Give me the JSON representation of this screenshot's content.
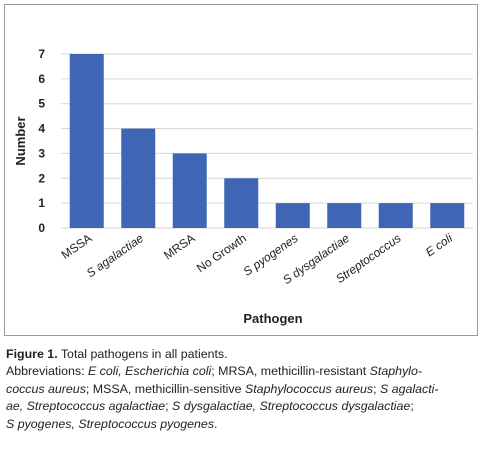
{
  "chart_data": {
    "type": "bar",
    "title": "",
    "xlabel": "Pathogen",
    "ylabel": "Number",
    "categories": [
      "MSSA",
      "S agalactiae",
      "MRSA",
      "No Growth",
      "S pyogenes",
      "S dysgalactiae",
      "Streptococcus",
      "E coli"
    ],
    "italic_categories": [
      false,
      true,
      false,
      false,
      true,
      true,
      true,
      true
    ],
    "values": [
      7,
      4,
      3,
      2,
      1,
      1,
      1,
      1
    ],
    "ylim": [
      0,
      7
    ],
    "yticks": [
      "0",
      "1",
      "2",
      "3",
      "4",
      "5",
      "6",
      "7"
    ],
    "grid": true,
    "bar_color": "#3e66b4",
    "grid_color": "#d6d6d6"
  },
  "caption": {
    "figure_label": "Figure 1.",
    "figure_title": " Total pathogens in all patients.",
    "abbreviations_lines": [
      [
        {
          "t": "Abbreviations: ",
          "i": false
        },
        {
          "t": "E coli, Escherichia coli",
          "i": true
        },
        {
          "t": "; MRSA, methicillin-resistant ",
          "i": false
        },
        {
          "t": "Staphylo-",
          "i": true
        }
      ],
      [
        {
          "t": "coccus aureus",
          "i": true
        },
        {
          "t": "; MSSA, methicillin-sensitive ",
          "i": false
        },
        {
          "t": "Staphylococcus aureus",
          "i": true
        },
        {
          "t": "; ",
          "i": false
        },
        {
          "t": "S agalacti-",
          "i": true
        }
      ],
      [
        {
          "t": "ae, Streptococcus agalactiae",
          "i": true
        },
        {
          "t": "; ",
          "i": false
        },
        {
          "t": "S dysgalactiae, Streptococcus dysgalactiae",
          "i": true
        },
        {
          "t": ";",
          "i": false
        }
      ],
      [
        {
          "t": "S pyogenes, Streptococcus pyogenes",
          "i": true
        },
        {
          "t": ".",
          "i": false
        }
      ]
    ]
  }
}
